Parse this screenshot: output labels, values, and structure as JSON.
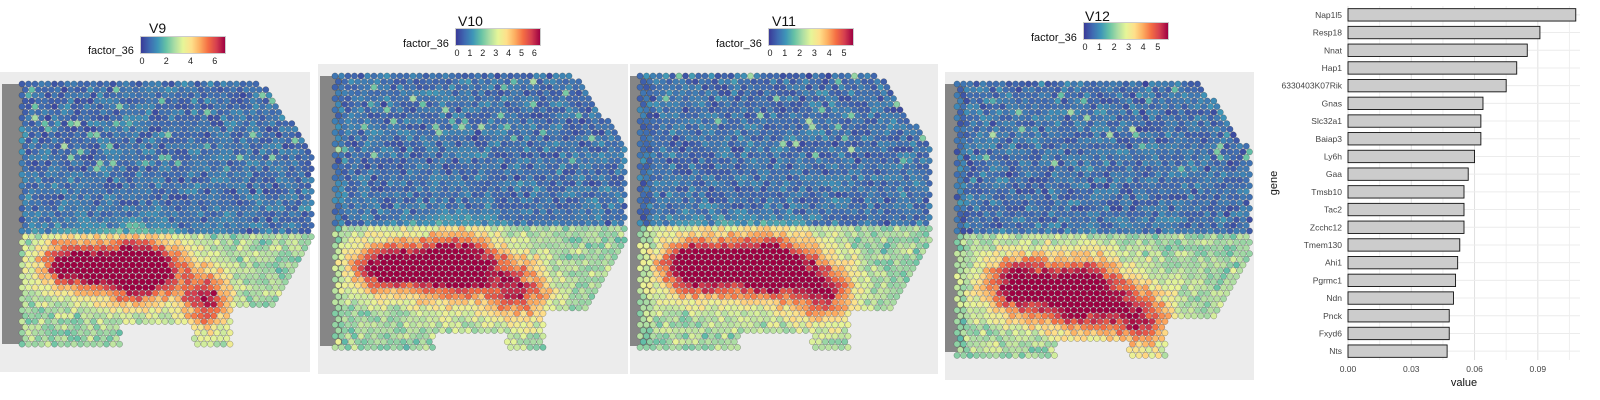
{
  "chart_data": [
    {
      "type": "heatmap",
      "title": "V9",
      "legend_title": "factor_36",
      "ticks": [
        "0",
        "2",
        "4",
        "6"
      ],
      "max": 6.6,
      "colormap": "Spectral (reversed)"
    },
    {
      "type": "heatmap",
      "title": "V10",
      "legend_title": "factor_36",
      "ticks": [
        "0",
        "1",
        "2",
        "3",
        "4",
        "5",
        "6"
      ],
      "max": 6.2,
      "colormap": "Spectral (reversed)"
    },
    {
      "type": "heatmap",
      "title": "V11",
      "legend_title": "factor_36",
      "ticks": [
        "0",
        "1",
        "2",
        "3",
        "4",
        "5"
      ],
      "max": 5.4,
      "colormap": "Spectral (reversed)"
    },
    {
      "type": "heatmap",
      "title": "V12",
      "legend_title": "factor_36",
      "ticks": [
        "0",
        "1",
        "2",
        "3",
        "4",
        "5"
      ],
      "max": 5.5,
      "colormap": "Spectral (reversed)"
    },
    {
      "type": "bar",
      "orientation": "horizontal",
      "xlabel": "value",
      "ylabel": "gene",
      "xlim": [
        0,
        0.11
      ],
      "xticks": [
        "0.00",
        "0.03",
        "0.06",
        "0.09"
      ],
      "grid": true,
      "bar_color": "#cccccc",
      "categories": [
        "Nap1l5",
        "Resp18",
        "Nnat",
        "Hap1",
        "6330403K07Rik",
        "Gnas",
        "Slc32a1",
        "Baiap3",
        "Ly6h",
        "Gaa",
        "Tmsb10",
        "Tac2",
        "Zcchc12",
        "Tmem130",
        "Ahi1",
        "Pgrmc1",
        "Ndn",
        "Pnck",
        "Fxyd6",
        "Nts"
      ],
      "values": [
        0.108,
        0.091,
        0.085,
        0.08,
        0.075,
        0.064,
        0.063,
        0.063,
        0.06,
        0.057,
        0.055,
        0.055,
        0.055,
        0.053,
        0.052,
        0.051,
        0.05,
        0.048,
        0.048,
        0.047
      ]
    }
  ]
}
